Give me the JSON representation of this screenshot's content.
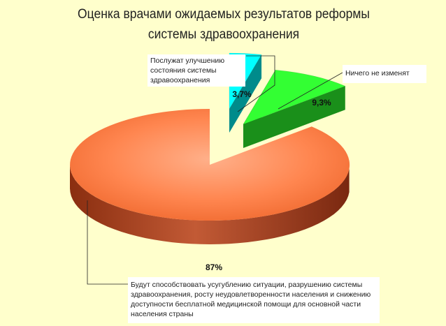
{
  "title": {
    "line1": "Оценка врачами ожидаемых результатов реформы",
    "line2": "системы здравоохранения"
  },
  "chart_data": {
    "type": "pie",
    "style": "3d-exploded",
    "slices": [
      {
        "label": "Будут способствовать усугублению ситуации, разрушению системы здравоохранения, росту неудовлетворенности населения и снижению доступности бесплатной медицинской помощи для основной части населения страны",
        "value": 87,
        "value_label": "87%",
        "color": "#FF7F3F"
      },
      {
        "label": "Послужат улучшению состояния системы здравоохранения",
        "value": 3.7,
        "value_label": "3,7%",
        "color": "#00FFFF"
      },
      {
        "label": "Ничего не изменят",
        "value": 9.3,
        "value_label": "9,3%",
        "color": "#33FF33"
      }
    ],
    "callouts": {
      "improve": [
        "Послужат улучшению",
        "состояния системы",
        "здравоохранения"
      ],
      "nochange": [
        "Ничего не изменят"
      ],
      "worsen": [
        "Будут способствовать усугублению ситуации, разрушению системы",
        "здравоохранения, росту неудовлетворенности населения и снижению",
        "доступности бесплатной медицинской помощи для основной части",
        "населения страны"
      ]
    }
  },
  "colors": {
    "background": "#FFFFCC",
    "orange_top": "#FF7F3F",
    "orange_side": "#A0391A",
    "cyan_top": "#00FFFF",
    "cyan_side": "#008B8B",
    "green_top": "#33FF33",
    "green_side": "#1A8F1A"
  }
}
